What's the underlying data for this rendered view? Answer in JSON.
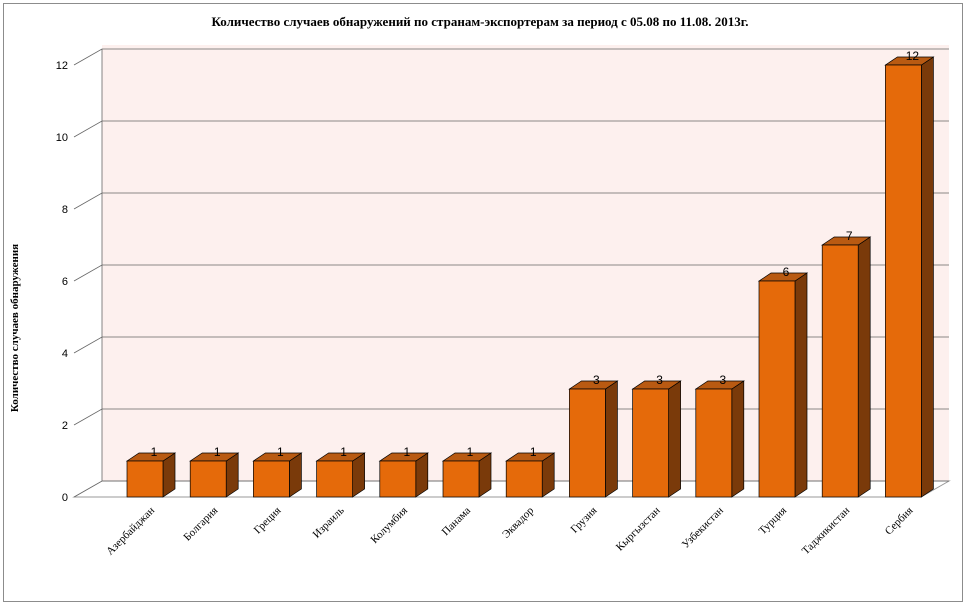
{
  "chart_data": {
    "type": "bar",
    "title": "Количество случаев обнаружений по странам-экспортерам за период с 05.08 по 11.08. 2013г.",
    "xlabel": "",
    "ylabel": "Количество случаев обнаружения",
    "ylim": [
      0,
      12
    ],
    "yticks": [
      "0",
      "2",
      "4",
      "6",
      "8",
      "10",
      "12"
    ],
    "grid": true,
    "legend": "none",
    "categories": [
      "Азербайджан",
      "Болгария",
      "Греция",
      "Израиль",
      "Колумбия",
      "Панама",
      "Эквадор",
      "Грузия",
      "Кыргызстан",
      "Узбекистан",
      "Турция",
      "Таджикистан",
      "Сербия"
    ],
    "values": [
      1,
      1,
      1,
      1,
      1,
      1,
      1,
      3,
      3,
      3,
      6,
      7,
      12
    ],
    "data_labels": [
      "1",
      "1",
      "1",
      "1",
      "1",
      "1",
      "1",
      "3",
      "3",
      "3",
      "6",
      "7",
      "12"
    ],
    "colors": {
      "bar_front": "#e56a0a",
      "bar_top": "#b95a12",
      "bar_side": "#7a3a0a",
      "wall": "#fdf0ee",
      "gridline": "#666666"
    }
  }
}
